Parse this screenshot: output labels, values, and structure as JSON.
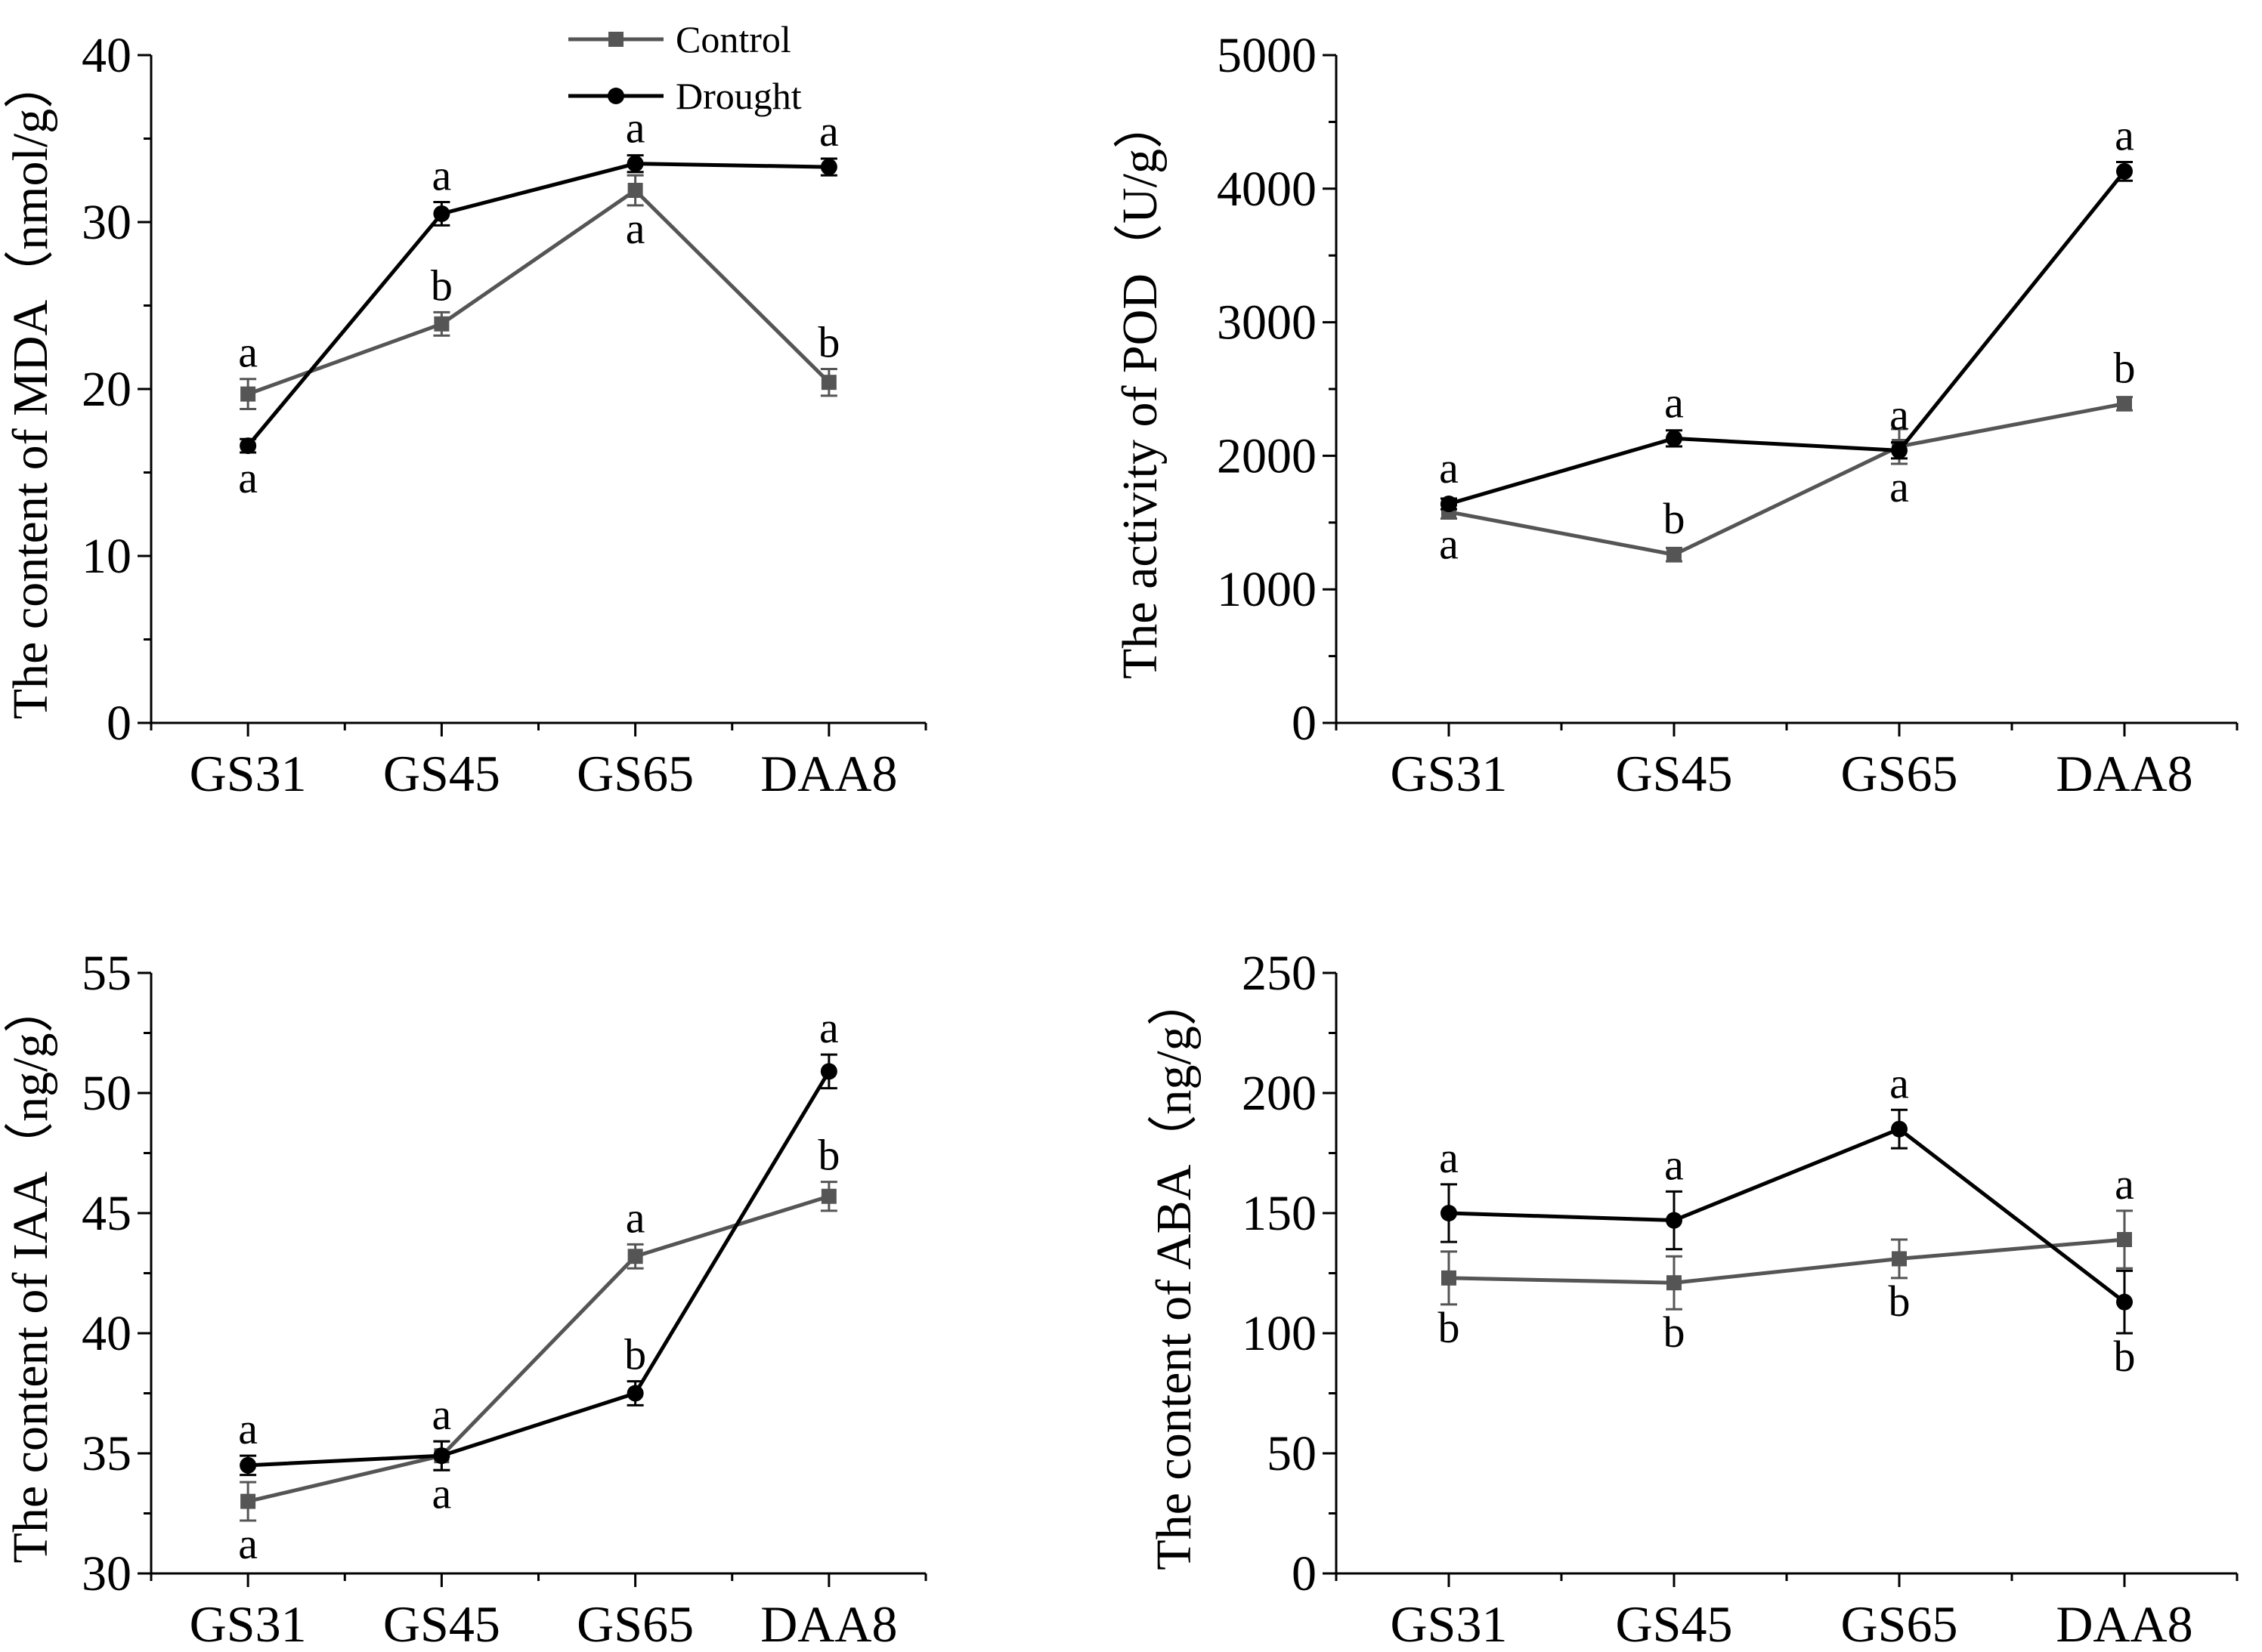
{
  "chart_data": [
    {
      "type": "line",
      "ylabel": "The content of MDA（nmol/g）",
      "categories": [
        "GS31",
        "GS45",
        "GS65",
        "DAA8"
      ],
      "ylim": [
        0,
        40
      ],
      "yticks": [
        "0",
        "10",
        "20",
        "30",
        "40"
      ],
      "legend": {
        "position": "top",
        "entries": [
          "Control",
          "Drought"
        ]
      },
      "series": [
        {
          "name": "Control",
          "color": "#555555",
          "marker": "square",
          "values": [
            19.7,
            23.9,
            31.9,
            20.4
          ],
          "errors": [
            0.9,
            0.7,
            0.9,
            0.8
          ],
          "letters": [
            "a",
            "b",
            "a",
            "b"
          ],
          "letter_side": [
            "above",
            "above",
            "below",
            "above"
          ]
        },
        {
          "name": "Drought",
          "color": "#000000",
          "marker": "circle",
          "values": [
            16.6,
            30.5,
            33.5,
            33.3
          ],
          "errors": [
            0.4,
            0.7,
            0.5,
            0.5
          ],
          "letters": [
            "a",
            "a",
            "a",
            "a"
          ],
          "letter_side": [
            "below",
            "above",
            "above",
            "above"
          ]
        }
      ]
    },
    {
      "type": "line",
      "ylabel": "The activity of POD（U/g）",
      "categories": [
        "GS31",
        "GS45",
        "GS65",
        "DAA8"
      ],
      "ylim": [
        0,
        5000
      ],
      "yticks": [
        "0",
        "1000",
        "2000",
        "3000",
        "4000",
        "5000"
      ],
      "series": [
        {
          "name": "Control",
          "color": "#555555",
          "marker": "square",
          "values": [
            1580,
            1260,
            2070,
            2390
          ],
          "errors": [
            50,
            50,
            130,
            50
          ],
          "letters": [
            "a",
            "b",
            "a",
            "b"
          ],
          "letter_side": [
            "below",
            "above",
            "below",
            "above"
          ]
        },
        {
          "name": "Drought",
          "color": "#000000",
          "marker": "circle",
          "values": [
            1640,
            2130,
            2040,
            4130
          ],
          "errors": [
            40,
            60,
            60,
            70
          ],
          "letters": [
            "a",
            "a",
            "a",
            "a"
          ],
          "letter_side": [
            "above",
            "above",
            "above",
            "above"
          ]
        }
      ]
    },
    {
      "type": "line",
      "ylabel": "The content of IAA（ng/g）",
      "categories": [
        "GS31",
        "GS45",
        "GS65",
        "DAA8"
      ],
      "ylim": [
        30,
        55
      ],
      "yticks": [
        "30",
        "35",
        "40",
        "45",
        "50",
        "55"
      ],
      "series": [
        {
          "name": "Control",
          "color": "#555555",
          "marker": "square",
          "values": [
            33.0,
            34.9,
            43.2,
            45.7
          ],
          "errors": [
            0.8,
            0.6,
            0.5,
            0.6
          ],
          "letters": [
            "a",
            "a",
            "a",
            "b"
          ],
          "letter_side": [
            "below",
            "below",
            "above",
            "above"
          ]
        },
        {
          "name": "Drought",
          "color": "#000000",
          "marker": "circle",
          "values": [
            34.5,
            34.9,
            37.5,
            50.9
          ],
          "errors": [
            0.4,
            0.6,
            0.5,
            0.7
          ],
          "letters": [
            "a",
            "a",
            "b",
            "a"
          ],
          "letter_side": [
            "above",
            "above",
            "above",
            "above"
          ]
        }
      ]
    },
    {
      "type": "line",
      "ylabel": "The content of ABA（ng/g）",
      "categories": [
        "GS31",
        "GS45",
        "GS65",
        "DAA8"
      ],
      "ylim": [
        0,
        250
      ],
      "yticks": [
        "0",
        "50",
        "100",
        "150",
        "200",
        "250"
      ],
      "series": [
        {
          "name": "Control",
          "color": "#555555",
          "marker": "square",
          "values": [
            123,
            121,
            131,
            139
          ],
          "errors": [
            11,
            11,
            8,
            12
          ],
          "letters": [
            "b",
            "b",
            "b",
            "a"
          ],
          "letter_side": [
            "below",
            "below",
            "below",
            "above"
          ]
        },
        {
          "name": "Drought",
          "color": "#000000",
          "marker": "circle",
          "values": [
            150,
            147,
            185,
            113
          ],
          "errors": [
            12,
            12,
            8,
            13
          ],
          "letters": [
            "a",
            "a",
            "a",
            "b"
          ],
          "letter_side": [
            "above",
            "above",
            "above",
            "below"
          ]
        }
      ]
    }
  ]
}
